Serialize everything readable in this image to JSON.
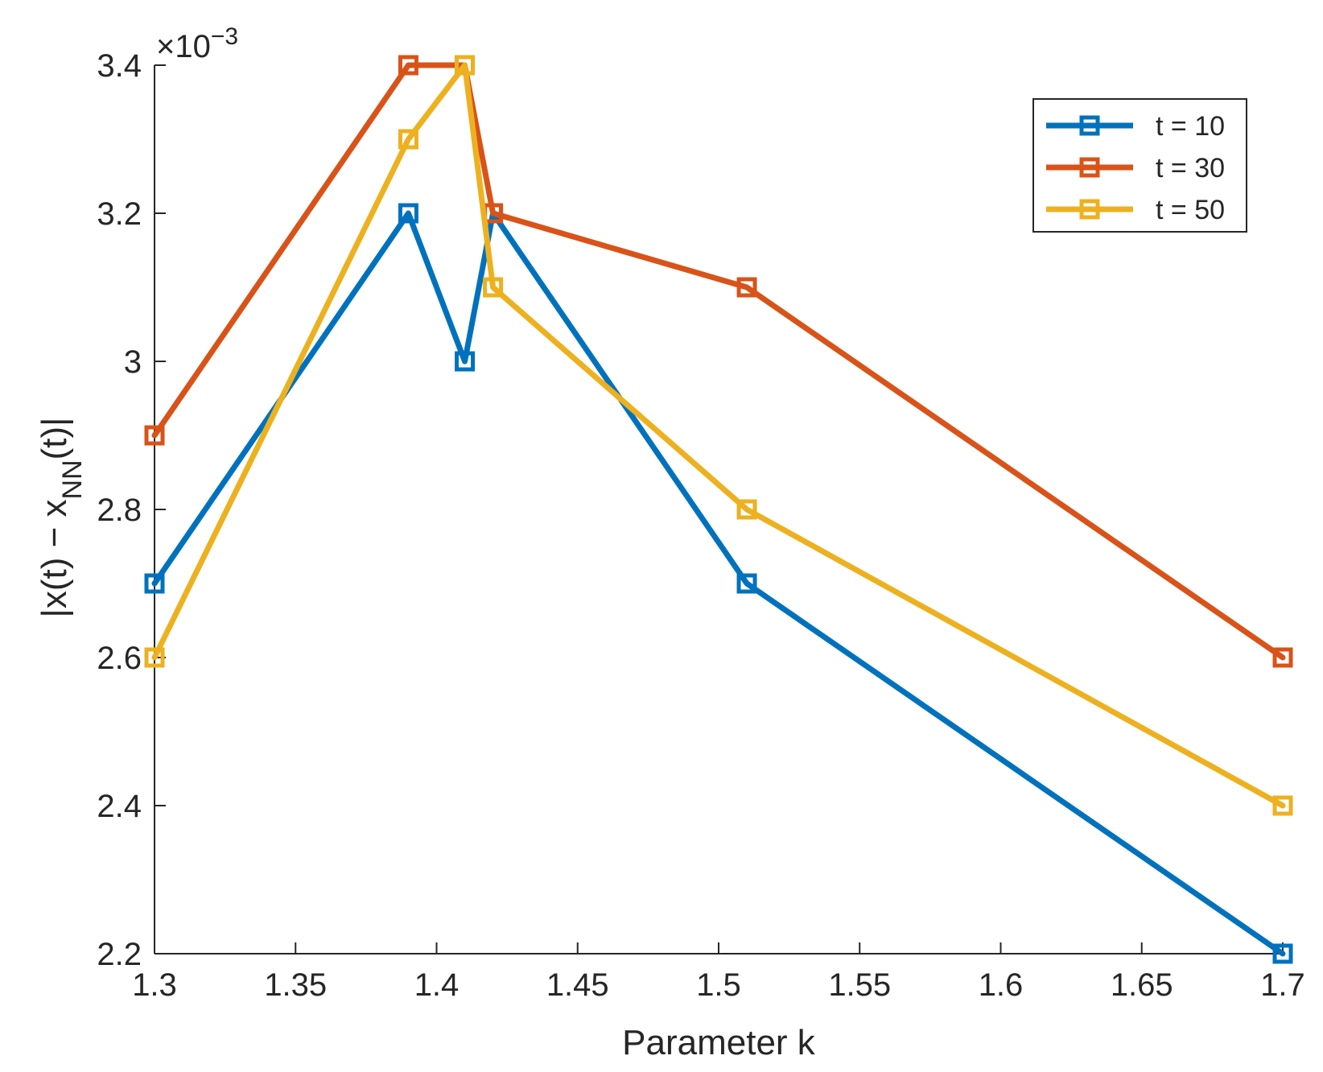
{
  "chart_data": {
    "type": "line",
    "title": "",
    "xlabel": "Parameter k",
    "ylabel": "|x(t) − x",
    "ylabel_sub": "NN",
    "ylabel_end": "(t)|",
    "y_exponent_base": "×10",
    "y_exponent_power": "−3",
    "xlim": [
      1.3,
      1.7
    ],
    "ylim": [
      2.2,
      3.4
    ],
    "x_ticks": [
      1.3,
      1.35,
      1.4,
      1.45,
      1.5,
      1.55,
      1.6,
      1.65,
      1.7
    ],
    "x_tick_labels": [
      "1.3",
      "1.35",
      "1.4",
      "1.45",
      "1.5",
      "1.55",
      "1.6",
      "1.65",
      "1.7"
    ],
    "y_ticks": [
      2.2,
      2.4,
      2.6,
      2.8,
      3.0,
      3.2,
      3.4
    ],
    "y_tick_labels": [
      "2.2",
      "2.4",
      "2.6",
      "2.8",
      "3",
      "3.2",
      "3.4"
    ],
    "grid": false,
    "legend_position": "top-right",
    "x": [
      1.3,
      1.39,
      1.41,
      1.42,
      1.51,
      1.7
    ],
    "series": [
      {
        "name": "t = 10",
        "color": "#0072BD",
        "values": [
          2.7,
          3.2,
          3.0,
          3.2,
          2.7,
          2.2
        ]
      },
      {
        "name": "t = 30",
        "color": "#D95319",
        "values": [
          2.9,
          3.4,
          3.4,
          3.2,
          3.1,
          2.6
        ]
      },
      {
        "name": "t = 50",
        "color": "#EDB120",
        "values": [
          2.6,
          3.3,
          3.4,
          3.1,
          2.8,
          2.4
        ]
      }
    ]
  }
}
